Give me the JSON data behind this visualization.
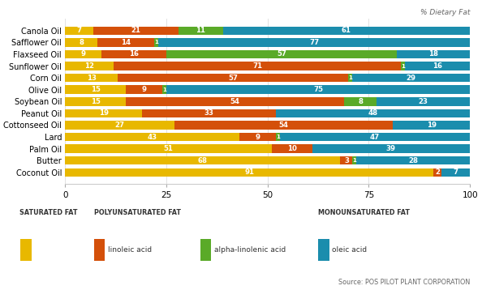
{
  "oils": [
    "Canola Oil",
    "Safflower Oil",
    "Flaxseed Oil",
    "Sunflower Oil",
    "Corn Oil",
    "Olive Oil",
    "Soybean Oil",
    "Peanut Oil",
    "Cottonseed Oil",
    "Lard",
    "Palm Oil",
    "Butter",
    "Coconut Oil"
  ],
  "saturated": [
    7,
    8,
    9,
    12,
    13,
    15,
    15,
    19,
    27,
    43,
    51,
    68,
    91
  ],
  "linoleic": [
    21,
    14,
    16,
    71,
    57,
    9,
    54,
    33,
    54,
    9,
    10,
    3,
    2
  ],
  "alpha_linolenic": [
    11,
    1,
    57,
    1,
    1,
    1,
    8,
    0,
    0,
    1,
    0,
    1,
    0
  ],
  "oleic": [
    61,
    77,
    18,
    16,
    29,
    75,
    23,
    48,
    19,
    47,
    39,
    28,
    7
  ],
  "colors": {
    "saturated": "#E8B800",
    "linoleic": "#D4500A",
    "alpha_linolenic": "#5AAA28",
    "oleic": "#1B8DAD"
  },
  "diag_label": "% Dietary Fat",
  "xlim": [
    0,
    100
  ],
  "xticks": [
    0,
    25,
    50,
    75,
    100
  ],
  "bar_height": 0.72,
  "background_color": "#FFFFFF",
  "legend_saturated_header": "SATURATED FAT",
  "legend_poly_header": "POLYUNSATURATED FAT",
  "legend_mono_header": "MONOUNSATURATED FAT",
  "legend_linoleic": "linoleic acid",
  "legend_alpha": "alpha-linolenic acid",
  "legend_oleic": "oleic acid",
  "source_text": "Source: POS PILOT PLANT CORPORATION"
}
